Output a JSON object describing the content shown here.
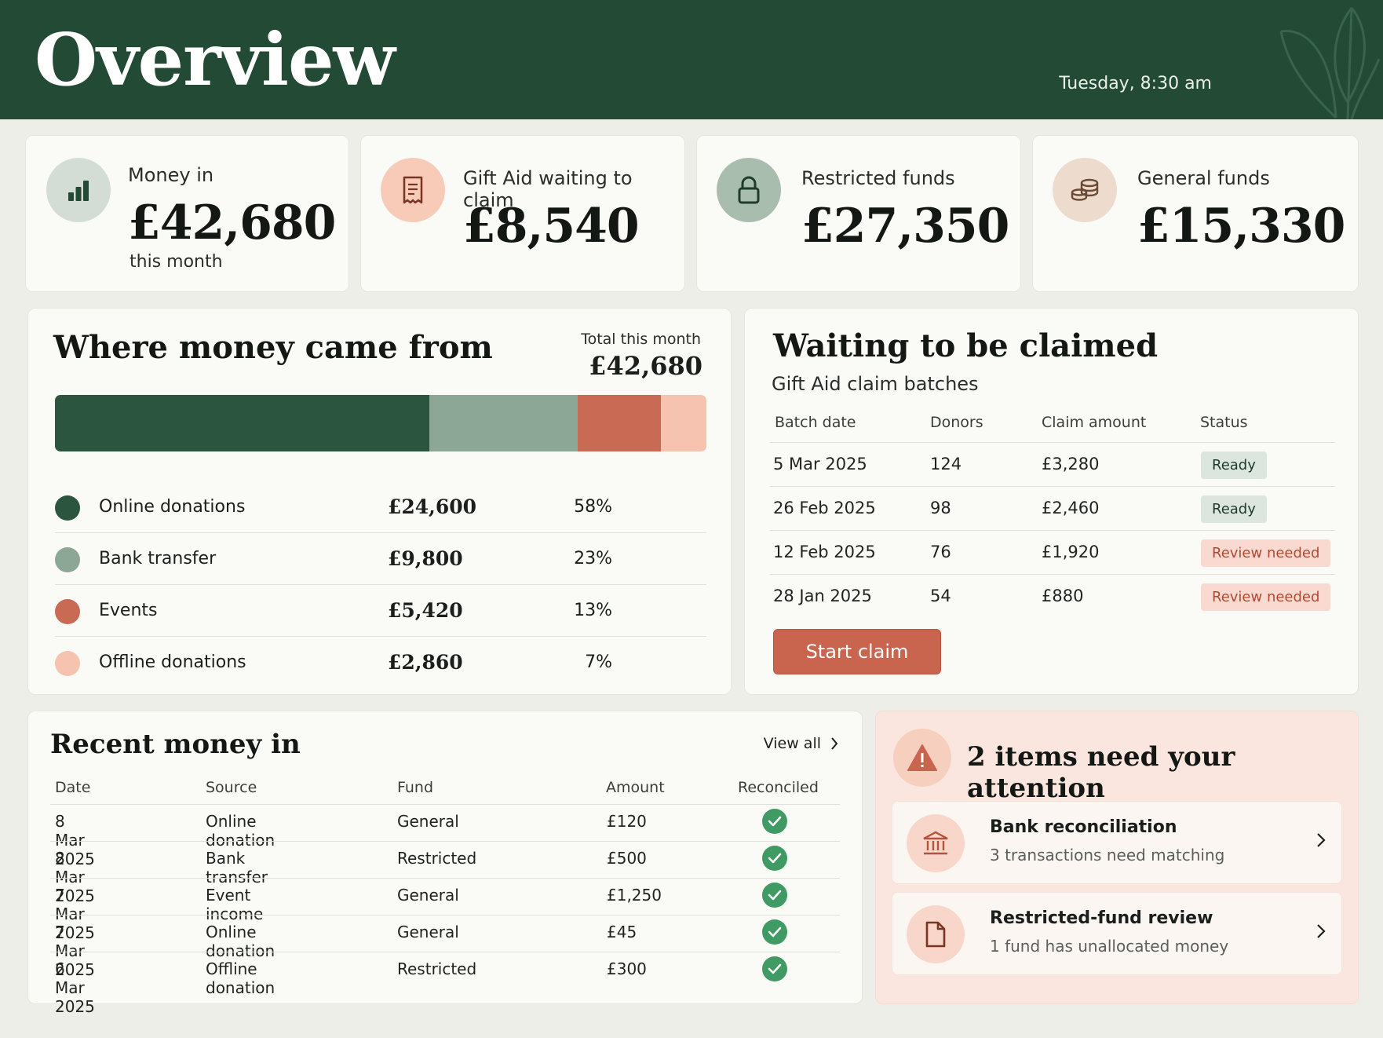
{
  "header": {
    "title": "Overview",
    "time": "Tuesday, 8:30 am",
    "color": "#234a35"
  },
  "stats": [
    {
      "label": "Money in",
      "value": "£42,680",
      "sub": "this month",
      "icon": "bar-chart-icon"
    },
    {
      "label": "Gift Aid waiting to claim",
      "value": "£8,540",
      "icon": "receipt-icon"
    },
    {
      "label": "Restricted funds",
      "value": "£27,350",
      "icon": "lock-icon"
    },
    {
      "label": "General funds",
      "value": "£15,330",
      "icon": "coins-icon"
    }
  ],
  "sources": {
    "title": "Where money came from",
    "total_label": "Total this month",
    "total_value": "£42,680",
    "items": [
      {
        "name": "Online donations",
        "amount": "£24,600",
        "pct": "58%",
        "share": 58,
        "color": "#2c5540"
      },
      {
        "name": "Bank transfer",
        "amount": "£9,800",
        "pct": "23%",
        "share": 23,
        "color": "#8ca796"
      },
      {
        "name": "Events",
        "amount": "£5,420",
        "pct": "13%",
        "share": 13,
        "color": "#c96a55"
      },
      {
        "name": "Offline donations",
        "amount": "£2,860",
        "pct": "7%",
        "share": 7,
        "color": "#f6c3b0"
      }
    ]
  },
  "claims": {
    "title": "Waiting to be claimed",
    "subtitle": "Gift Aid claim batches",
    "columns": [
      "Batch date",
      "Donors",
      "Claim amount",
      "Status"
    ],
    "rows": [
      {
        "date": "5 Mar 2025",
        "donors": "124",
        "amount": "£3,280",
        "status": "Ready",
        "kind": "ready"
      },
      {
        "date": "26 Feb 2025",
        "donors": "98",
        "amount": "£2,460",
        "status": "Ready",
        "kind": "ready"
      },
      {
        "date": "12 Feb 2025",
        "donors": "76",
        "amount": "£1,920",
        "status": "Review needed",
        "kind": "review"
      },
      {
        "date": "28 Jan 2025",
        "donors": "54",
        "amount": "£880",
        "status": "Review needed",
        "kind": "review"
      }
    ],
    "button": "Start claim"
  },
  "recent": {
    "title": "Recent money in",
    "view_all": "View all",
    "columns": [
      "Date",
      "Source",
      "Fund",
      "Amount",
      "Reconciled"
    ],
    "rows": [
      {
        "date": "8 Mar 2025",
        "source": "Online donation",
        "fund": "General",
        "amount": "£120",
        "reconciled": true
      },
      {
        "date": "8 Mar 2025",
        "source": "Bank transfer",
        "fund": "Restricted",
        "amount": "£500",
        "reconciled": true
      },
      {
        "date": "7 Mar 2025",
        "source": "Event income",
        "fund": "General",
        "amount": "£1,250",
        "reconciled": true
      },
      {
        "date": "7 Mar 2025",
        "source": "Online donation",
        "fund": "General",
        "amount": "£45",
        "reconciled": true
      },
      {
        "date": "6 Mar 2025",
        "source": "Offline donation",
        "fund": "Restricted",
        "amount": "£300",
        "reconciled": true
      }
    ]
  },
  "attention": {
    "title": "2 items need your attention",
    "items": [
      {
        "title": "Bank reconciliation",
        "sub": "3 transactions need matching",
        "icon": "bank-icon"
      },
      {
        "title": "Restricted-fund review",
        "sub": "1 fund has unallocated money",
        "icon": "document-icon"
      }
    ]
  }
}
